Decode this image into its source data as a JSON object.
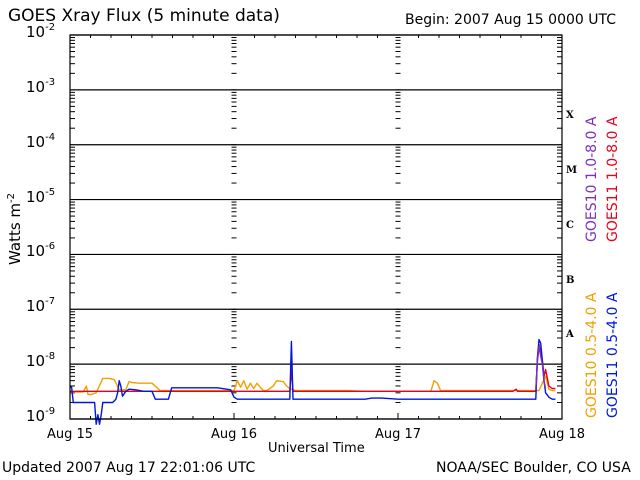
{
  "header": {
    "title": "GOES Xray Flux (5 minute data)",
    "begin": "Begin:  2007 Aug 15 0000 UTC"
  },
  "footer": {
    "updated": "Updated 2007 Aug 17 22:01:06 UTC",
    "credit": "NOAA/SEC Boulder, CO USA"
  },
  "colors": {
    "goes10_long": "#7b2fbe",
    "goes11_long": "#e8001c",
    "goes10_short": "#f0a000",
    "goes11_short": "#0018d8"
  },
  "chart_data": {
    "type": "line",
    "title": "GOES Xray Flux (5 minute data)",
    "xlabel": "Universal Time",
    "ylabel_base": "Watts m",
    "ylabel_exp": "-2",
    "yscale": "log",
    "ylim": [
      1e-09,
      0.01
    ],
    "xlim": [
      0,
      3
    ],
    "grid": true,
    "x_ticks": [
      {
        "value": 0,
        "label": "Aug 15"
      },
      {
        "value": 1,
        "label": "Aug 16"
      },
      {
        "value": 2,
        "label": "Aug 17"
      },
      {
        "value": 3,
        "label": "Aug 18"
      }
    ],
    "y_ticks": [
      {
        "value": 0.01,
        "base": "10",
        "exp": "-2"
      },
      {
        "value": 0.001,
        "base": "10",
        "exp": "-3"
      },
      {
        "value": 0.0001,
        "base": "10",
        "exp": "-4"
      },
      {
        "value": 1e-05,
        "base": "10",
        "exp": "-5"
      },
      {
        "value": 1e-06,
        "base": "10",
        "exp": "-6"
      },
      {
        "value": 1e-07,
        "base": "10",
        "exp": "-7"
      },
      {
        "value": 1e-08,
        "base": "10",
        "exp": "-8"
      },
      {
        "value": 1e-09,
        "base": "10",
        "exp": "-9"
      }
    ],
    "flare_classes": [
      {
        "label": "X",
        "value": 0.00032
      },
      {
        "label": "M",
        "value": 3.2e-05
      },
      {
        "label": "C",
        "value": 3.2e-06
      },
      {
        "label": "B",
        "value": 3.2e-07
      },
      {
        "label": "A",
        "value": 3.2e-08
      }
    ],
    "legend_placement": "right",
    "legend": [
      {
        "label": "GOES10 1.0-8.0 A",
        "color": "#7b2fbe"
      },
      {
        "label": "GOES11 1.0-8.0 A",
        "color": "#e8001c"
      },
      {
        "label": "GOES10 0.5-4.0 A",
        "color": "#f0a000"
      },
      {
        "label": "GOES11 0.5-4.0 A",
        "color": "#0018d8"
      }
    ],
    "series": [
      {
        "name": "GOES10 0.5-4.0 A",
        "color": "#f0a000",
        "x": [
          0,
          0.02,
          0.05,
          0.08,
          0.1,
          0.11,
          0.13,
          0.16,
          0.2,
          0.24,
          0.27,
          0.3,
          0.32,
          0.34,
          0.36,
          0.38,
          0.42,
          0.45,
          0.5,
          0.55,
          0.6,
          0.62,
          0.65,
          0.7,
          0.8,
          0.9,
          1.0,
          1.02,
          1.04,
          1.06,
          1.08,
          1.1,
          1.12,
          1.14,
          1.16,
          1.18,
          1.2,
          1.24,
          1.26,
          1.3,
          1.32,
          1.34,
          1.36,
          1.38,
          1.4,
          1.44,
          1.48,
          1.5,
          1.6,
          1.7,
          1.8,
          1.9,
          2.0,
          2.1,
          2.2,
          2.22,
          2.24,
          2.26,
          2.3,
          2.4,
          2.5,
          2.6,
          2.7,
          2.8,
          2.82,
          2.86,
          2.88,
          2.9,
          2.92,
          2.94,
          2.96
        ],
        "y": [
          3.1e-09,
          3.1e-09,
          3.1e-09,
          3.1e-09,
          4e-09,
          2.8e-09,
          2.8e-09,
          3e-09,
          5.5e-09,
          5.5e-09,
          5.2e-09,
          3.4e-09,
          3.4e-09,
          3.4e-09,
          4.8e-09,
          4.6e-09,
          4.5e-09,
          4.5e-09,
          4.5e-09,
          3.3e-09,
          3.3e-09,
          3.3e-09,
          3.3e-09,
          3.3e-09,
          3.3e-09,
          3.3e-09,
          3.3e-09,
          5e-09,
          3.8e-09,
          5e-09,
          3.5e-09,
          4.5e-09,
          3.6e-09,
          4.5e-09,
          3.8e-09,
          3.3e-09,
          3.3e-09,
          4e-09,
          5e-09,
          4.8e-09,
          4e-09,
          3.6e-09,
          3.4e-09,
          3.3e-09,
          3.3e-09,
          3.3e-09,
          3.3e-09,
          3.3e-09,
          3.3e-09,
          3.3e-09,
          3.2e-09,
          3.2e-09,
          3.2e-09,
          3.2e-09,
          3.2e-09,
          5e-09,
          4.5e-09,
          3.3e-09,
          3.3e-09,
          3.3e-09,
          3.3e-09,
          3.3e-09,
          3.3e-09,
          3.3e-09,
          3.3e-09,
          3.3e-09,
          4.5e-09,
          6e-09,
          3.5e-09,
          3.3e-09,
          3.3e-09
        ]
      },
      {
        "name": "GOES11 1.0-8.0 A",
        "color": "#e8001c",
        "x": [
          0,
          0.5,
          1.0,
          1.3,
          1.34,
          1.35,
          1.36,
          1.37,
          1.5,
          2.0,
          2.5,
          2.7,
          2.72,
          2.73,
          2.8,
          2.84,
          2.85,
          2.86,
          2.87,
          2.88,
          2.89,
          2.9,
          2.92,
          2.94,
          2.96
        ],
        "y": [
          3.2e-09,
          3.2e-09,
          3.2e-09,
          3.2e-09,
          3.2e-09,
          8e-09,
          3.2e-09,
          3.2e-09,
          3.2e-09,
          3.2e-09,
          3.2e-09,
          3.2e-09,
          3.5e-09,
          3.2e-09,
          3.2e-09,
          3.2e-09,
          1.2e-08,
          2.3e-08,
          1.6e-08,
          1.2e-08,
          6e-09,
          8e-09,
          4e-09,
          3.6e-09,
          3.6e-09
        ]
      },
      {
        "name": "GOES11 0.5-4.0 A",
        "color": "#0018d8",
        "x": [
          0,
          0.01,
          0.02,
          0.04,
          0.06,
          0.12,
          0.15,
          0.16,
          0.17,
          0.18,
          0.19,
          0.2,
          0.22,
          0.26,
          0.28,
          0.29,
          0.3,
          0.31,
          0.32,
          0.34,
          0.36,
          0.4,
          0.45,
          0.5,
          0.52,
          0.6,
          0.62,
          0.66,
          0.7,
          0.8,
          0.9,
          0.98,
          1.0,
          1.02,
          1.05,
          1.1,
          1.2,
          1.3,
          1.34,
          1.35,
          1.36,
          1.38,
          1.5,
          1.6,
          1.7,
          1.8,
          1.84,
          1.88,
          1.9,
          2.0,
          2.2,
          2.4,
          2.6,
          2.8,
          2.84,
          2.85,
          2.86,
          2.87,
          2.88,
          2.89,
          2.9,
          2.92,
          2.94,
          2.96
        ],
        "y": [
          3.8e-09,
          3.8e-09,
          2e-09,
          2e-09,
          2e-09,
          2e-09,
          2e-09,
          8e-10,
          1.2e-09,
          8e-10,
          1.2e-09,
          2e-09,
          2e-09,
          2e-09,
          2.3e-09,
          3e-09,
          5e-09,
          4e-09,
          2.6e-09,
          3.2e-09,
          3.5e-09,
          3.4e-09,
          3.2e-09,
          3.2e-09,
          2.3e-09,
          2.3e-09,
          3.7e-09,
          3.7e-09,
          3.7e-09,
          3.7e-09,
          3.7e-09,
          3.4e-09,
          2.5e-09,
          2.3e-09,
          2.3e-09,
          2.3e-09,
          2.3e-09,
          2.3e-09,
          2.3e-09,
          2.6e-08,
          2.3e-09,
          2.3e-09,
          2.3e-09,
          2.3e-09,
          2.3e-09,
          2.3e-09,
          2.4e-09,
          2.4e-09,
          2.4e-09,
          2.3e-09,
          2.3e-09,
          2.3e-09,
          2.3e-09,
          2.3e-09,
          2.3e-09,
          1.3e-08,
          2.8e-08,
          2.4e-08,
          1.2e-08,
          5e-09,
          3e-09,
          2.5e-09,
          2.3e-09,
          2.3e-09
        ]
      },
      {
        "name": "GOES10 1.0-8.0 A",
        "color": "#7b2fbe",
        "x": [
          2.84,
          2.85,
          2.86,
          2.87,
          2.88,
          2.89,
          2.9
        ],
        "y": [
          3.4e-09,
          1.1e-08,
          2.1e-08,
          1.4e-08,
          1e-08,
          5e-09,
          3.6e-09
        ]
      }
    ]
  }
}
